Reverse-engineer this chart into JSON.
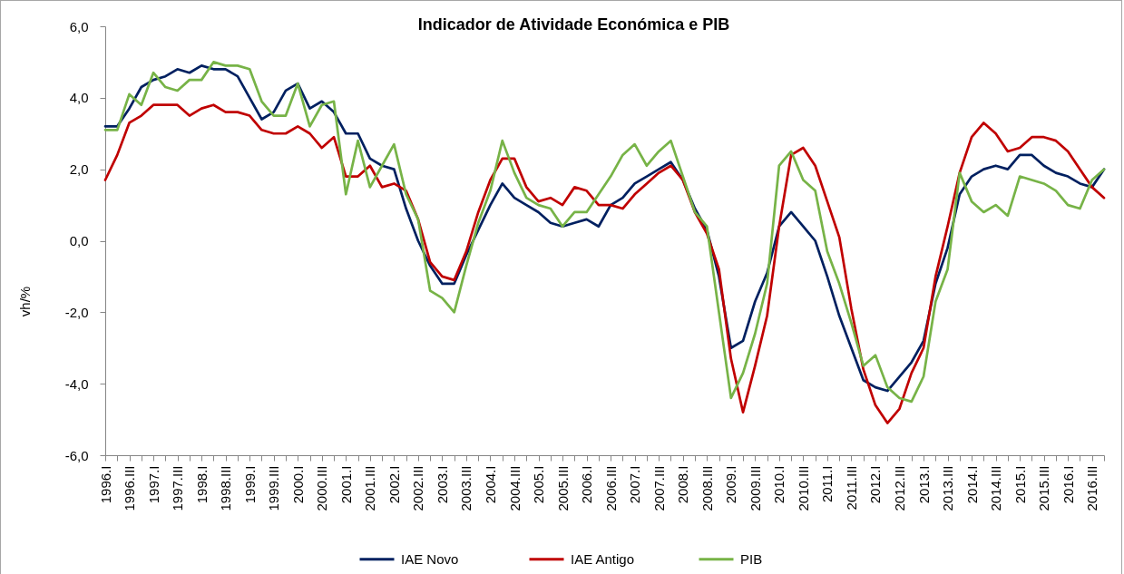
{
  "chart_data": {
    "type": "line",
    "title": "Indicador de Atividade Económica e PIB",
    "ylabel": "vh/%",
    "categories": [
      "1996.I",
      null,
      "1996.III",
      null,
      "1997.I",
      null,
      "1997.III",
      null,
      "1998.I",
      null,
      "1998.III",
      null,
      "1999.I",
      null,
      "1999.III",
      null,
      "2000.I",
      null,
      "2000.III",
      null,
      "2001.I",
      null,
      "2001.III",
      null,
      "2002.I",
      null,
      "2002.III",
      null,
      "2003.I",
      null,
      "2003.III",
      null,
      "2004.I",
      null,
      "2004.III",
      null,
      "2005.I",
      null,
      "2005.III",
      null,
      "2006.I",
      null,
      "2006.III",
      null,
      "2007.I",
      null,
      "2007.III",
      null,
      "2008.I",
      null,
      "2008.III",
      null,
      "2009.I",
      null,
      "2009.III",
      null,
      "2010.I",
      null,
      "2010.III",
      null,
      "2011.I",
      null,
      "2011.III",
      null,
      "2012.I",
      null,
      "2012.III",
      null,
      "2013.I",
      null,
      "2013.III",
      null,
      "2014.I",
      null,
      "2014.III",
      null,
      "2015.I",
      null,
      "2015.III",
      null,
      "2016.I",
      null,
      "2016.III",
      null
    ],
    "series": [
      {
        "name": "IAE Novo",
        "color": "#002060",
        "values": [
          3.2,
          3.2,
          3.7,
          4.3,
          4.5,
          4.6,
          4.8,
          4.7,
          4.9,
          4.8,
          4.8,
          4.6,
          4.0,
          3.4,
          3.6,
          4.2,
          4.4,
          3.7,
          3.9,
          3.6,
          3.0,
          3.0,
          2.3,
          2.1,
          2.0,
          0.9,
          0.0,
          -0.7,
          -1.2,
          -1.2,
          -0.4,
          0.3,
          1.0,
          1.6,
          1.2,
          1.0,
          0.8,
          0.5,
          0.4,
          0.5,
          0.6,
          0.4,
          1.0,
          1.2,
          1.6,
          1.8,
          2.0,
          2.2,
          1.7,
          0.9,
          0.3,
          -1.0,
          -3.0,
          -2.8,
          -1.7,
          -0.9,
          0.4,
          0.8,
          0.4,
          0.0,
          -1.0,
          -2.1,
          -3.0,
          -3.9,
          -4.1,
          -4.2,
          -3.8,
          -3.4,
          -2.8,
          -1.2,
          -0.2,
          1.3,
          1.8,
          2.0,
          2.1,
          2.0,
          2.4,
          2.4,
          2.1,
          1.9,
          1.8,
          1.6,
          1.5,
          2.0
        ]
      },
      {
        "name": "IAE Antigo",
        "color": "#c00000",
        "values": [
          1.7,
          2.4,
          3.3,
          3.5,
          3.8,
          3.8,
          3.8,
          3.5,
          3.7,
          3.8,
          3.6,
          3.6,
          3.5,
          3.1,
          3.0,
          3.0,
          3.2,
          3.0,
          2.6,
          2.9,
          1.8,
          1.8,
          2.1,
          1.5,
          1.6,
          1.4,
          0.6,
          -0.6,
          -1.0,
          -1.1,
          -0.3,
          0.8,
          1.7,
          2.3,
          2.3,
          1.5,
          1.1,
          1.2,
          1.0,
          1.5,
          1.4,
          1.0,
          1.0,
          0.9,
          1.3,
          1.6,
          1.9,
          2.1,
          1.7,
          0.8,
          0.2,
          -0.8,
          -3.3,
          -4.8,
          -3.5,
          -2.1,
          0.4,
          2.4,
          2.6,
          2.1,
          1.1,
          0.1,
          -1.9,
          -3.6,
          -4.6,
          -5.1,
          -4.7,
          -3.7,
          -3.0,
          -1.0,
          0.4,
          1.9,
          2.9,
          3.3,
          3.0,
          2.5,
          2.6,
          2.9,
          2.9,
          2.8,
          2.5,
          2.0,
          1.5,
          1.2
        ]
      },
      {
        "name": "PIB",
        "color": "#77b347",
        "values": [
          3.1,
          3.1,
          4.1,
          3.8,
          4.7,
          4.3,
          4.2,
          4.5,
          4.5,
          5.0,
          4.9,
          4.9,
          4.8,
          3.9,
          3.5,
          3.5,
          4.4,
          3.2,
          3.8,
          3.9,
          1.3,
          2.8,
          1.5,
          2.1,
          2.7,
          1.3,
          0.6,
          -1.4,
          -1.6,
          -2.0,
          -0.7,
          0.5,
          1.4,
          2.8,
          1.9,
          1.2,
          1.0,
          0.9,
          0.4,
          0.8,
          0.8,
          1.3,
          1.8,
          2.4,
          2.7,
          2.1,
          2.5,
          2.8,
          1.8,
          0.8,
          0.4,
          -2.0,
          -4.4,
          -3.7,
          -2.6,
          -1.2,
          2.1,
          2.5,
          1.7,
          1.4,
          -0.3,
          -1.2,
          -2.3,
          -3.5,
          -3.2,
          -4.1,
          -4.4,
          -4.5,
          -3.8,
          -1.7,
          -0.8,
          1.9,
          1.1,
          0.8,
          1.0,
          0.7,
          1.8,
          1.7,
          1.6,
          1.4,
          1.0,
          0.9,
          1.7,
          2.0
        ]
      }
    ],
    "ylim": [
      -6,
      6
    ],
    "yticks": [
      {
        "value": -6,
        "label": "-6,0"
      },
      {
        "value": -4,
        "label": "-4,0"
      },
      {
        "value": -2,
        "label": "-2,0"
      },
      {
        "value": 0,
        "label": "0,0"
      },
      {
        "value": 2,
        "label": "2,0"
      },
      {
        "value": 4,
        "label": "4,0"
      },
      {
        "value": 6,
        "label": "6,0"
      }
    ],
    "legend": "bottom"
  }
}
